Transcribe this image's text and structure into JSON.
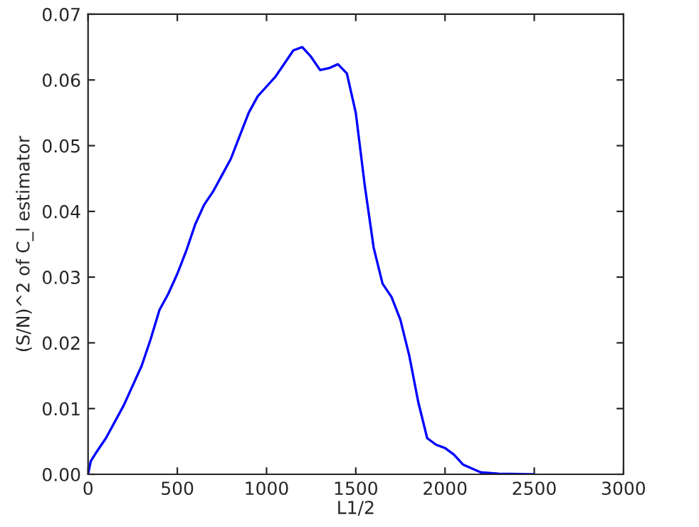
{
  "chart_data": {
    "type": "line",
    "xlabel": "L1/2",
    "ylabel": "(S/N)^2 of C_l estimator",
    "x": [
      0,
      15,
      50,
      100,
      200,
      300,
      350,
      400,
      450,
      500,
      550,
      600,
      650,
      700,
      750,
      800,
      850,
      900,
      950,
      1000,
      1050,
      1100,
      1150,
      1200,
      1250,
      1300,
      1350,
      1400,
      1450,
      1500,
      1550,
      1600,
      1650,
      1700,
      1750,
      1800,
      1850,
      1900,
      1950,
      2000,
      2050,
      2100,
      2200,
      2300,
      2500
    ],
    "series": [
      {
        "color": "#0000ff",
        "values": [
          0,
          0.002,
          0.0035,
          0.0055,
          0.0105,
          0.0165,
          0.0205,
          0.025,
          0.0275,
          0.0305,
          0.034,
          0.038,
          0.041,
          0.043,
          0.0455,
          0.048,
          0.0515,
          0.055,
          0.0575,
          0.059,
          0.0605,
          0.0625,
          0.0645,
          0.065,
          0.0635,
          0.0615,
          0.0618,
          0.0624,
          0.061,
          0.055,
          0.044,
          0.0345,
          0.029,
          0.027,
          0.0235,
          0.018,
          0.011,
          0.0055,
          0.0045,
          0.004,
          0.003,
          0.0015,
          0.0003,
          0.0001,
          0
        ]
      }
    ],
    "xlim": [
      0,
      3000
    ],
    "xticks": [
      0,
      500,
      1000,
      1500,
      2000,
      2500,
      3000
    ],
    "ylim": [
      0,
      0.07
    ],
    "yticks": [
      {
        "value": 0,
        "label": "0.00"
      },
      {
        "value": 0.01,
        "label": "0.01"
      },
      {
        "value": 0.02,
        "label": "0.02"
      },
      {
        "value": 0.03,
        "label": "0.03"
      },
      {
        "value": 0.04,
        "label": "0.04"
      },
      {
        "value": 0.05,
        "label": "0.05"
      },
      {
        "value": 0.06,
        "label": "0.06"
      },
      {
        "value": 0.07,
        "label": "0.07"
      }
    ],
    "grid": false,
    "line_style": "solid",
    "marker": "none"
  }
}
